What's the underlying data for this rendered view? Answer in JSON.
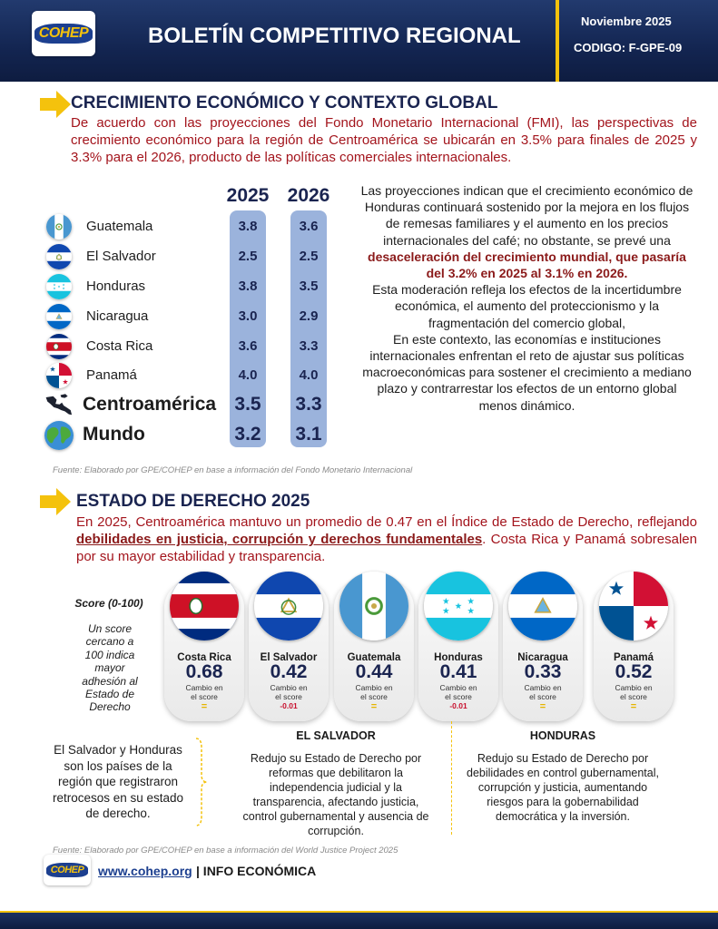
{
  "header": {
    "logo": "COHEP",
    "title": "BOLETÍN COMPETITIVO REGIONAL",
    "date": "Noviembre 2025",
    "code": "CODIGO: F-GPE-09"
  },
  "growth": {
    "title": "CRECIMIENTO ECONÓMICO Y CONTEXTO GLOBAL",
    "intro": "De acuerdo con las proyecciones del Fondo Monetario Internacional (FMI), las perspectivas de crecimiento económico para la región de Centroamérica se ubicarán en 3.5% para finales de 2025 y 3.3% para el 2026, producto de las políticas comerciales internacionales.",
    "table": {
      "years": [
        "2025",
        "2026"
      ],
      "rows": [
        {
          "country": "Guatemala",
          "values": [
            "3.8",
            "3.6"
          ]
        },
        {
          "country": "El Salvador",
          "values": [
            "2.5",
            "2.5"
          ]
        },
        {
          "country": "Honduras",
          "values": [
            "3.8",
            "3.5"
          ]
        },
        {
          "country": "Nicaragua",
          "values": [
            "3.0",
            "2.9"
          ]
        },
        {
          "country": "Costa Rica",
          "values": [
            "3.6",
            "3.3"
          ]
        },
        {
          "country": "Panamá",
          "values": [
            "4.0",
            "4.0"
          ]
        },
        {
          "country": "Centroamérica",
          "values": [
            "3.5",
            "3.3"
          ]
        },
        {
          "country": "Mundo",
          "values": [
            "3.2",
            "3.1"
          ]
        }
      ]
    },
    "commentary": [
      [
        "Las proyecciones indican que el crecimiento económico de Honduras continuará sostenido por la mejora en los flujos de remesas familiares y el aumento en los precios internacionales del café; no obstante, se prevé una ",
        "desaceleración del crecimiento mundial, que pasaría del 3.2% en 2025 al 3.1% en 2026."
      ],
      [
        "Esta moderación refleja los efectos de la incertidumbre económica, el aumento del proteccionismo y la fragmentación del comercio global,"
      ],
      [
        "En este contexto, las economías e instituciones internacionales enfrentan el reto de ajustar sus políticas macroeconómicas para sostener el crecimiento a mediano plazo y contrarrestar los efectos de un entorno global menos dinámico."
      ]
    ],
    "source": "Fuente: Elaborado por GPE/COHEP en base a información del Fondo Monetario Internacional"
  },
  "rule_of_law": {
    "title": "ESTADO DE DERECHO 2025",
    "intro": [
      "En 2025, Centroamérica mantuvo un promedio de 0.47 en el Índice de Estado de Derecho, reflejando ",
      "debilidades en justicia, corrupción y derechos fundamentales",
      ". Costa Rica y Panamá sobresalen por su mayor estabilidad y transparencia."
    ],
    "score_label": "Score (0-100)",
    "score_note": "Un score cercano a 100 indica mayor adhesión al Estado de Derecho",
    "cards": [
      {
        "country": "Costa Rica",
        "score": "0.68",
        "change_label": "Cambio en el score",
        "change": "="
      },
      {
        "country": "El Salvador",
        "score": "0.42",
        "change_label": "Cambio en el score",
        "change": "-0.01"
      },
      {
        "country": "Guatemala",
        "score": "0.44",
        "change_label": "Cambio en el score",
        "change": "="
      },
      {
        "country": "Honduras",
        "score": "0.41",
        "change_label": "Cambio en el score",
        "change": "-0.01"
      },
      {
        "country": "Nicaragua",
        "score": "0.33",
        "change_label": "Cambio en el score",
        "change": "="
      },
      {
        "country": "Panamá",
        "score": "0.52",
        "change_label": "Cambio en el score",
        "change": "="
      }
    ],
    "summary": "El Salvador y Honduras son los países de la región que registraron retrocesos en su estado de derecho.",
    "details": [
      {
        "heading": "EL SALVADOR",
        "text": "Redujo su Estado de Derecho por reformas que debilitaron la independencia judicial y la transparencia, afectando justicia, control gubernamental y ausencia de corrupción."
      },
      {
        "heading": "HONDURAS",
        "text": "Redujo su Estado de Derecho por debilidades en control gubernamental, corrupción y justicia, aumentando riesgos para la gobernabilidad democrática y la inversión."
      }
    ],
    "source": "Fuente: Elaborado por GPE/COHEP en base a información del World Justice Project 2025"
  },
  "footer": {
    "logo": "COHEP",
    "link": "www.cohep.org",
    "label": "| INFO ECONÓMICA"
  }
}
